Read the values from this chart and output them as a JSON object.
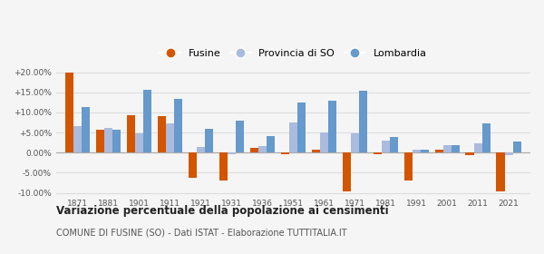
{
  "years": [
    1871,
    1881,
    1901,
    1911,
    1921,
    1931,
    1936,
    1951,
    1961,
    1971,
    1981,
    1991,
    2001,
    2011,
    2021
  ],
  "fusine": [
    19.8,
    5.7,
    9.3,
    9.1,
    -6.3,
    -7.0,
    1.2,
    -0.3,
    0.7,
    -9.7,
    -0.5,
    -6.9,
    0.8,
    -0.6,
    -9.7
  ],
  "provincia_so": [
    6.6,
    6.2,
    4.8,
    7.2,
    1.3,
    -0.5,
    1.7,
    7.4,
    5.1,
    4.7,
    3.0,
    0.8,
    1.9,
    2.2,
    -0.6
  ],
  "lombardia": [
    11.4,
    5.7,
    15.7,
    13.3,
    5.9,
    7.9,
    4.2,
    12.4,
    12.9,
    15.3,
    3.9,
    0.7,
    1.9,
    7.3,
    2.7
  ],
  "fusine_color": "#d45500",
  "provincia_color": "#aabbdd",
  "lombardia_color": "#6699cc",
  "title": "Variazione percentuale della popolazione ai censimenti",
  "subtitle": "COMUNE DI FUSINE (SO) - Dati ISTAT - Elaborazione TUTTITALIA.IT",
  "ylim": [
    -10.5,
    22.0
  ],
  "yticks": [
    -10.0,
    -5.0,
    0.0,
    5.0,
    10.0,
    15.0,
    20.0
  ],
  "ytick_labels": [
    "-10.00%",
    "-5.00%",
    "0.00%",
    "+5.00%",
    "+10.00%",
    "+15.00%",
    "+20.00%"
  ],
  "bg_color": "#f5f5f5",
  "grid_color": "#dddddd",
  "bar_width": 0.27
}
